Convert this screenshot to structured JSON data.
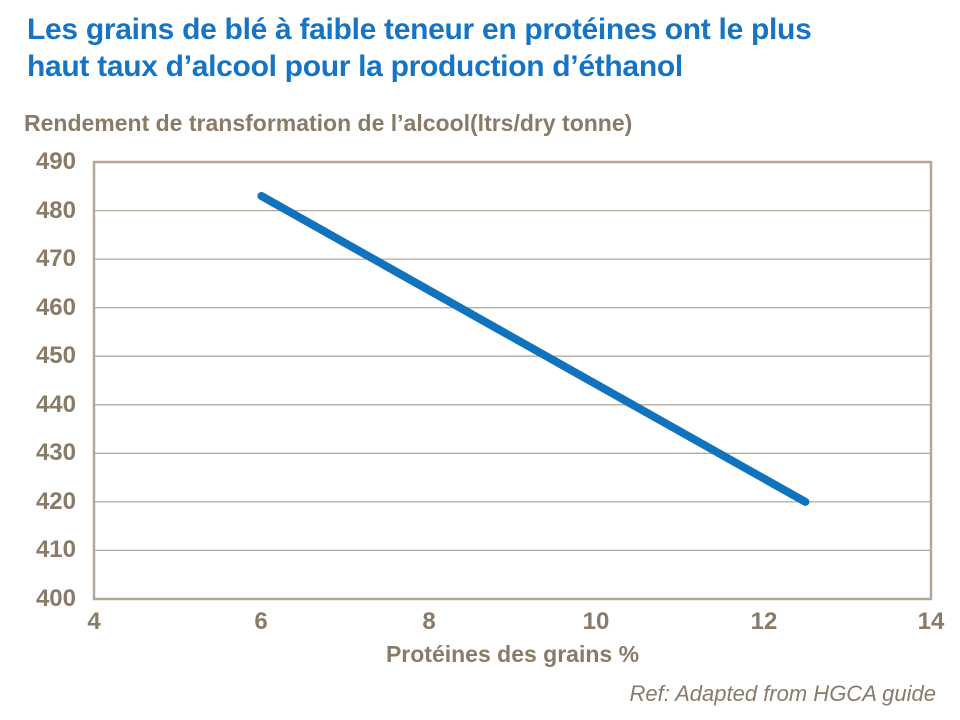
{
  "header": {
    "title_lines": [
      "Les grains de blé à faible teneur en protéines ont le plus",
      "haut taux d’alcool pour la production d’éthanol"
    ],
    "subtitle": "Rendement de transformation de l’alcool(ltrs/dry tonne)"
  },
  "footer": {
    "ref": "Ref: Adapted from HGCA guide"
  },
  "colors": {
    "title": "#1574c4",
    "line": "#1173be",
    "axis_text": "#8a7a68",
    "grid": "#b6ab9e",
    "frame": "#b2a79a"
  },
  "chart_data": {
    "type": "line",
    "title": "Rendement de transformation de l’alcool(ltrs/dry tonne)",
    "xlabel": "Protéines des grains %",
    "ylabel": "",
    "xlim": [
      4,
      14
    ],
    "ylim": [
      400,
      490
    ],
    "xticks": [
      4,
      6,
      8,
      10,
      12,
      14
    ],
    "yticks": [
      400,
      410,
      420,
      430,
      440,
      450,
      460,
      470,
      480,
      490
    ],
    "grid": true,
    "legend_position": "none",
    "series": [
      {
        "points": [
          [
            6,
            483
          ],
          [
            12.5,
            420
          ]
        ]
      }
    ],
    "source": "Ref: Adapted from HGCA guide"
  }
}
